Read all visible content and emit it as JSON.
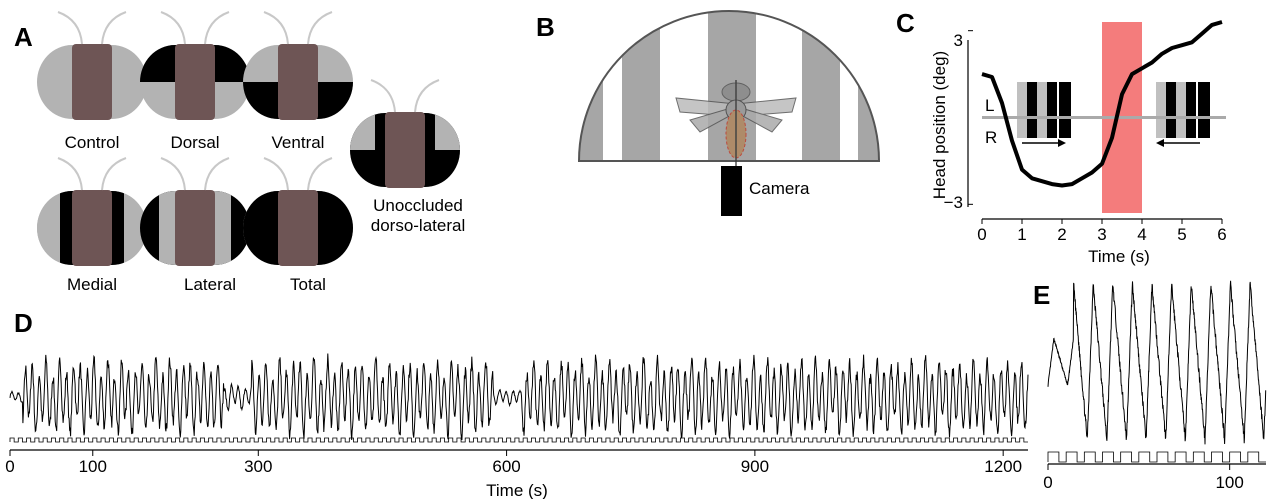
{
  "panels": {
    "a": "A",
    "b": "B",
    "c": "C",
    "d": "D",
    "e": "E"
  },
  "panel_a": {
    "conditions": [
      {
        "label": "Control",
        "occlusion": "none"
      },
      {
        "label": "Dorsal",
        "occlusion": "dorsal"
      },
      {
        "label": "Ventral",
        "occlusion": "ventral"
      },
      {
        "label": "Medial",
        "occlusion": "medial"
      },
      {
        "label": "Lateral",
        "occlusion": "lateral"
      },
      {
        "label": "Total",
        "occlusion": "total"
      }
    ],
    "extra": {
      "line1": "Unoccluded",
      "line2": "dorso-lateral",
      "occlusion": "dorso-lateral"
    },
    "colors": {
      "head": "#6e5555",
      "eye": "#b3b3b3",
      "occluder": "#000000",
      "antenna": "#c8c8c8"
    }
  },
  "panel_b": {
    "camera_label": "Camera",
    "colors": {
      "stripe": "#a6a6a6",
      "dome_edge": "#555555"
    }
  },
  "panel_c": {
    "ylabel": "Head position (deg)",
    "xlabel": "Time (s)",
    "y_ticks": [
      "3",
      "−3"
    ],
    "x_ticks": [
      "0",
      "1",
      "2",
      "3",
      "4",
      "5",
      "6"
    ],
    "side_left": "L",
    "side_right": "R",
    "highlight_color": "#f47c7c"
  },
  "chart_data": [
    {
      "type": "line",
      "panel": "C",
      "xlabel": "Time (s)",
      "ylabel": "Head position (deg)",
      "xlim": [
        0,
        6
      ],
      "ylim": [
        -3.3,
        3.3
      ],
      "highlight_x": [
        3,
        4
      ],
      "x": [
        0,
        0.25,
        0.5,
        0.75,
        1.0,
        1.25,
        1.5,
        1.75,
        2.0,
        2.25,
        2.5,
        2.75,
        3.0,
        3.25,
        3.5,
        3.75,
        4.0,
        4.25,
        4.5,
        4.75,
        5.0,
        5.25,
        5.5,
        5.75,
        6.0
      ],
      "y": [
        1.5,
        1.4,
        0.5,
        -0.8,
        -1.8,
        -2.1,
        -2.2,
        -2.3,
        -2.35,
        -2.3,
        -2.1,
        -1.9,
        -1.6,
        -0.7,
        0.8,
        1.5,
        1.7,
        1.9,
        2.2,
        2.4,
        2.5,
        2.6,
        2.9,
        3.2,
        3.3
      ]
    },
    {
      "type": "line",
      "panel": "D",
      "xlabel": "Time (s)",
      "xlim": [
        0,
        1230
      ],
      "x_ticks": [
        0,
        100,
        300,
        600,
        900,
        1200
      ],
      "x_tick_labels": [
        "0",
        "100",
        "300",
        "600",
        "900",
        "1200"
      ],
      "description_values": "oscillating head position trace with quiet epochs near 270 s and 600 s"
    },
    {
      "type": "line",
      "panel": "E",
      "xlim": [
        0,
        120
      ],
      "x_ticks": [
        0,
        100
      ],
      "x_tick_labels": [
        "0",
        "100"
      ]
    }
  ]
}
